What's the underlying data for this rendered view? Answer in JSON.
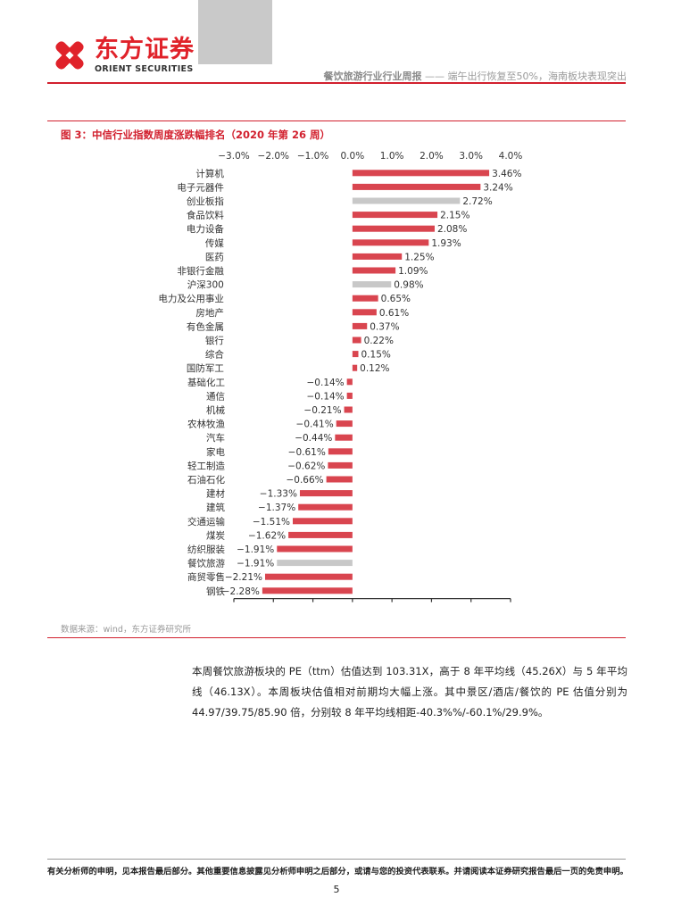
{
  "header": {
    "logo_cn": "东方证券",
    "logo_en": "ORIENT SECURITIES",
    "report_title": "餐饮旅游行业行业周报",
    "separator": " —— ",
    "report_subtitle": "端午出行恢复至50%，海南板块表现突出"
  },
  "figure": {
    "title": "图 3：中信行业指数周度涨跌幅排名（2020 年第 26 周）",
    "source": "数据来源：wind，东方证券研究所"
  },
  "chart_data": {
    "type": "bar",
    "orientation": "horizontal",
    "categories": [
      "计算机",
      "电子元器件",
      "创业板指",
      "食品饮料",
      "电力设备",
      "传媒",
      "医药",
      "非银行金融",
      "沪深300",
      "电力及公用事业",
      "房地产",
      "有色金属",
      "银行",
      "综合",
      "国防军工",
      "基础化工",
      "通信",
      "机械",
      "农林牧渔",
      "汽车",
      "家电",
      "轻工制造",
      "石油石化",
      "建材",
      "建筑",
      "交通运输",
      "煤炭",
      "纺织服装",
      "餐饮旅游",
      "商贸零售",
      "钢铁"
    ],
    "values": [
      3.46,
      3.24,
      2.72,
      2.15,
      2.08,
      1.93,
      1.25,
      1.09,
      0.98,
      0.65,
      0.61,
      0.37,
      0.22,
      0.15,
      0.12,
      -0.14,
      -0.14,
      -0.21,
      -0.41,
      -0.44,
      -0.61,
      -0.62,
      -0.66,
      -1.33,
      -1.37,
      -1.51,
      -1.62,
      -1.91,
      -1.91,
      -2.21,
      -2.28
    ],
    "labels": [
      "3.46%",
      "3.24%",
      "2.72%",
      "2.15%",
      "2.08%",
      "1.93%",
      "1.25%",
      "1.09%",
      "0.98%",
      "0.65%",
      "0.61%",
      "0.37%",
      "0.22%",
      "0.15%",
      "0.12%",
      "−0.14%",
      "−0.14%",
      "−0.21%",
      "−0.41%",
      "−0.44%",
      "−0.61%",
      "−0.62%",
      "−0.66%",
      "−1.33%",
      "−1.37%",
      "−1.51%",
      "−1.62%",
      "−1.91%",
      "−1.91%",
      "−2.21%",
      "−2.28%"
    ],
    "highlight": [
      "创业板指",
      "沪深300",
      "餐饮旅游"
    ],
    "colors": {
      "bar": "#d9454f",
      "highlight": "#c8c8c8",
      "axis": "#333333"
    },
    "xlim": [
      -3.0,
      4.0
    ],
    "xticks": [
      -3.0,
      -2.0,
      -1.0,
      0.0,
      1.0,
      2.0,
      3.0,
      4.0
    ],
    "xtick_labels": [
      "−3.0%",
      "−2.0%",
      "−1.0%",
      "0.0%",
      "1.0%",
      "2.0%",
      "3.0%",
      "4.0%"
    ],
    "axis_position": "top",
    "legend": "none"
  },
  "paragraph": "本周餐饮旅游板块的 PE（ttm）估值达到 103.31X，高于 8 年平均线（45.26X）与 5 年平均线（46.13X）。本周板块估值相对前期均大幅上涨。其中景区/酒店/餐饮的 PE 估值分别为 44.97/39.75/85.90 倍，分别较 8 年平均线相距-40.3%%/-60.1%/29.9%。",
  "footer": {
    "disclaimer": "有关分析师的申明，见本报告最后部分。其他重要信息披露见分析师申明之后部分，或请与您的投资代表联系。并请阅读本证券研究报告最后一页的免责申明。",
    "page_number": "5"
  }
}
